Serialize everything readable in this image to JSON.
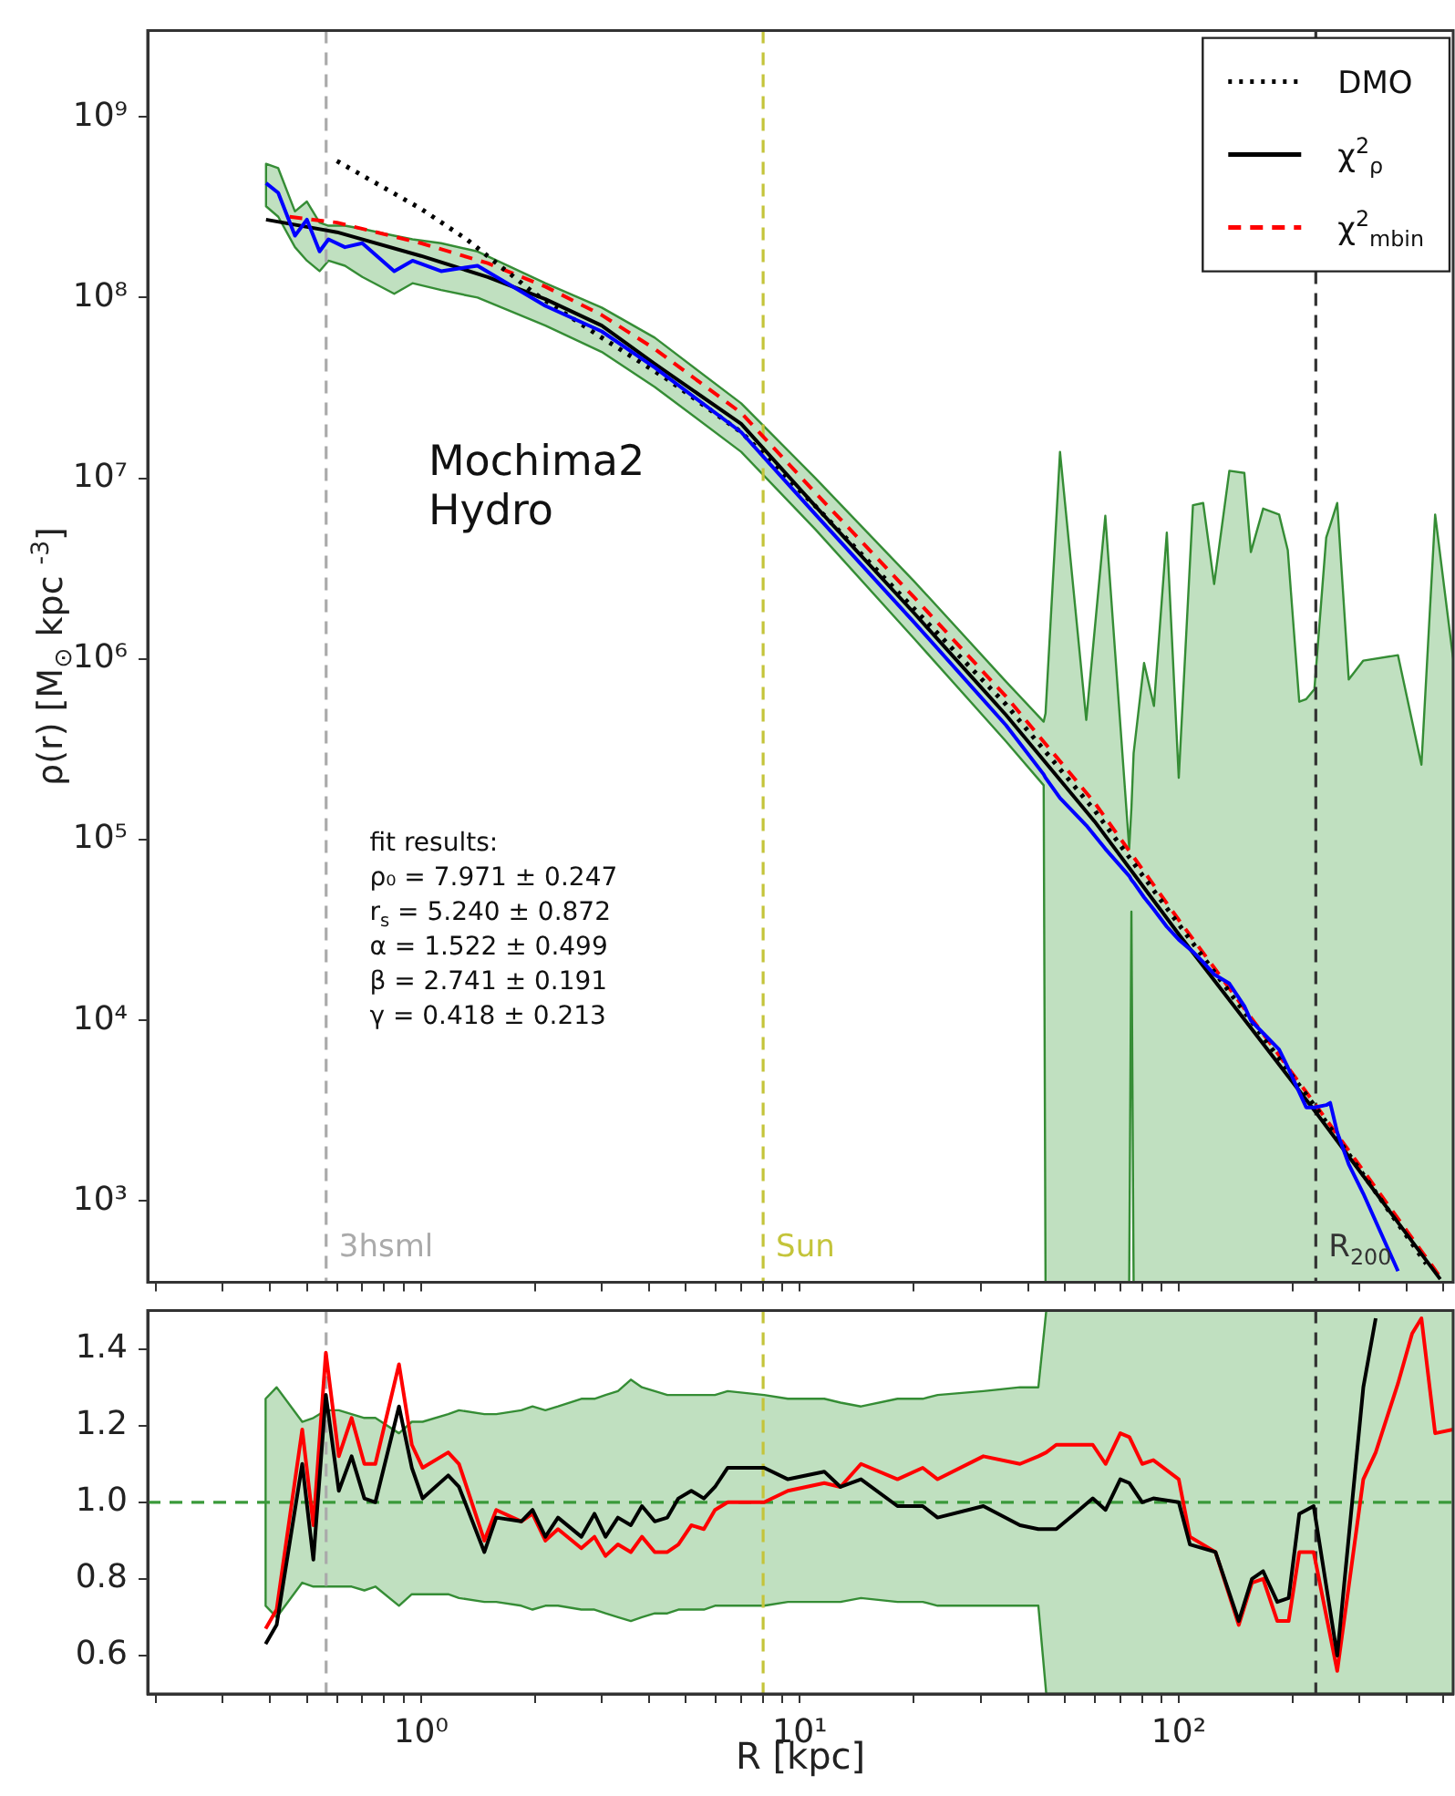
{
  "chart_data": [
    {
      "type": "line",
      "ylabel": "ρ(r) [M$_{⊙}$ kpc $^{-3}$]",
      "log": "xy",
      "xlim": [
        0.19,
        530
      ],
      "ylim": [
        356,
        3000000000
      ],
      "tick_labels": "y",
      "legend": "top right",
      "xticks": [
        {
          "value": 0.2,
          "label": null
        },
        {
          "value": 0.3,
          "label": null
        },
        {
          "value": 0.4,
          "label": null
        },
        {
          "value": 0.5,
          "label": null
        },
        {
          "value": 0.6,
          "label": null
        },
        {
          "value": 0.7,
          "label": null
        },
        {
          "value": 0.8,
          "label": null
        },
        {
          "value": 0.9,
          "label": null
        },
        {
          "value": 1,
          "label": null
        },
        {
          "value": 2,
          "label": null
        },
        {
          "value": 3,
          "label": null
        },
        {
          "value": 4,
          "label": null
        },
        {
          "value": 5,
          "label": null
        },
        {
          "value": 6,
          "label": null
        },
        {
          "value": 7,
          "label": null
        },
        {
          "value": 8,
          "label": null
        },
        {
          "value": 9,
          "label": null
        },
        {
          "value": 10,
          "label": null
        },
        {
          "value": 20,
          "label": null
        },
        {
          "value": 30,
          "label": null
        },
        {
          "value": 40,
          "label": null
        },
        {
          "value": 50,
          "label": null
        },
        {
          "value": 60,
          "label": null
        },
        {
          "value": 70,
          "label": null
        },
        {
          "value": 80,
          "label": null
        },
        {
          "value": 90,
          "label": null
        },
        {
          "value": 100,
          "label": null
        },
        {
          "value": 200,
          "label": null
        },
        {
          "value": 300,
          "label": null
        },
        {
          "value": 400,
          "label": null
        },
        {
          "value": 500,
          "label": null
        }
      ],
      "yticks": [
        {
          "value": 1000,
          "label": "10³"
        },
        {
          "value": 10000,
          "label": "10⁴"
        },
        {
          "value": 100000,
          "label": "10⁵"
        },
        {
          "value": 1000000,
          "label": "10⁶"
        },
        {
          "value": 10000000,
          "label": "10⁷"
        },
        {
          "value": 100000000,
          "label": "10⁸"
        },
        {
          "value": 1000000000,
          "label": "10⁹"
        }
      ],
      "ref_lines": [
        {
          "axis": "x",
          "value": 0.562,
          "label": "3hsml",
          "color": "#aaaaaa",
          "line_style": "dashed"
        },
        {
          "axis": "x",
          "value": 8,
          "label": "Sun",
          "color": "#c4c43a",
          "line_style": "dashed"
        },
        {
          "axis": "x",
          "value": 230,
          "label": "R$_{200}$",
          "color": "#333333",
          "line_style": "dashed"
        }
      ],
      "annotations": [
        "Mochima2\nHydro",
        "fit results:\nρ₀ = 7.971 ± 0.247\nr$_{s}$ = 5.240 ± 0.872\nα = 1.522 ± 0.499\nβ = 2.741 ± 0.191\nγ = 0.418 ± 0.213"
      ],
      "series": [
        {
          "color": "#0000ff",
          "line_style": "solid",
          "x": [
            0.39,
            0.42,
            0.465,
            0.5,
            0.54,
            0.57,
            0.63,
            0.7,
            0.85,
            0.95,
            1.13,
            1.41,
            2.13,
            3,
            4.14,
            7,
            11,
            20,
            35,
            44,
            44.5,
            48.6,
            57,
            64,
            74,
            75,
            76,
            81,
            86,
            93,
            100,
            109,
            116,
            124,
            136,
            149,
            155,
            167,
            184,
            194,
            208,
            217,
            228,
            245,
            251,
            262,
            281,
            307,
            379,
            437,
            475,
            530
          ],
          "values": [
            430000000,
            380000000,
            220000000,
            270000000,
            180000000,
            210000000,
            190000000,
            200000000,
            140000000,
            160000000,
            140000000,
            150000000,
            90000000,
            65000000,
            41000000,
            18000000,
            6300000,
            1600000,
            430000,
            230000,
            220000,
            170000,
            120000,
            89000,
            63000,
            60000,
            58000,
            48000,
            41000,
            33000,
            28000,
            24000,
            21000,
            18000,
            16000,
            12000,
            10000,
            8500,
            6900,
            5500,
            4000,
            3300,
            3300,
            3400,
            3500,
            2400,
            1600,
            1100,
            410,
            null,
            null,
            null
          ],
          "lower": [
            320000000,
            280000000,
            190000000,
            160000000,
            140000000,
            160000000,
            150000000,
            130000000,
            105000000,
            120000000,
            110000000,
            100000000,
            70000000,
            50000000,
            32000000,
            14000000,
            5200000,
            1300000,
            350000,
            200000,
            356,
            356,
            356,
            356,
            356,
            40000,
            356,
            356,
            356,
            356,
            356,
            356,
            356,
            356,
            356,
            356,
            356,
            356,
            356,
            356,
            356,
            356,
            356,
            356,
            356,
            356,
            356,
            356,
            356,
            356,
            356,
            356
          ],
          "upper": [
            550000000,
            520000000,
            300000000,
            340000000,
            260000000,
            250000000,
            250000000,
            240000000,
            220000000,
            210000000,
            200000000,
            180000000,
            120000000,
            88000000,
            60000000,
            26000000,
            10000000,
            2700000,
            750000,
            450000,
            500000,
            14000000,
            460000,
            6200000,
            90000,
            150000,
            300000,
            950000,
            550000,
            5000000,
            220000,
            7100000,
            7300000,
            2600000,
            11000000,
            10700000,
            3900000,
            6800000,
            6300000,
            4000000,
            580000,
            600000,
            680000,
            4700000,
            5500000,
            7300000,
            770000,
            980000,
            1050000,
            260000,
            6300000,
            1000000
          ]
        },
        {
          "name": "DMO",
          "color": "#000000",
          "line_style": "dotted",
          "x": [
            0.6,
            1,
            1.32,
            2,
            3,
            4.5,
            7,
            11,
            20,
            35,
            60,
            100,
            230,
            450
          ],
          "values": [
            570000000,
            310000000,
            210000000,
            105000000,
            60000000,
            35000000,
            18000000,
            7000000,
            1900000,
            560000,
            145000,
            34000,
            3300,
            450
          ]
        },
        {
          "name": "χ$^{2}$$_{ρ}$",
          "color": "#000000",
          "line_style": "solid",
          "x": [
            0.39,
            0.6,
            1,
            1.5,
            2.13,
            3,
            4.14,
            7,
            11,
            20,
            35,
            60,
            100,
            230,
            490
          ],
          "values": [
            270000000,
            230000000,
            170000000,
            130000000,
            98000000,
            70000000,
            43000000,
            20000000,
            7000000,
            1800000,
            490000,
            126000,
            30000,
            3100,
            370
          ]
        },
        {
          "name": "χ$^{2}$$_{mbin}$",
          "color": "#ff0000",
          "line_style": "dashed",
          "x": [
            0.45,
            0.6,
            1,
            1.5,
            2.13,
            3,
            4.14,
            7,
            11,
            20,
            35,
            60,
            100,
            230,
            490
          ],
          "values": [
            280000000,
            260000000,
            200000000,
            155000000,
            115000000,
            80000000,
            52000000,
            23000000,
            8300000,
            2200000,
            620000,
            160000,
            36000,
            3400,
            380
          ]
        }
      ]
    },
    {
      "type": "line",
      "xlabel": "R [kpc]",
      "log": "x",
      "xlim": [
        0.19,
        530
      ],
      "ylim": [
        0.5,
        1.5
      ],
      "xticks": [
        {
          "value": 0.2,
          "label": null
        },
        {
          "value": 0.3,
          "label": null
        },
        {
          "value": 0.4,
          "label": null
        },
        {
          "value": 0.5,
          "label": null
        },
        {
          "value": 0.6,
          "label": null
        },
        {
          "value": 0.7,
          "label": null
        },
        {
          "value": 0.8,
          "label": null
        },
        {
          "value": 0.9,
          "label": null
        },
        {
          "value": 1,
          "label": "10⁰"
        },
        {
          "value": 2,
          "label": null
        },
        {
          "value": 3,
          "label": null
        },
        {
          "value": 4,
          "label": null
        },
        {
          "value": 5,
          "label": null
        },
        {
          "value": 6,
          "label": null
        },
        {
          "value": 7,
          "label": null
        },
        {
          "value": 8,
          "label": null
        },
        {
          "value": 9,
          "label": null
        },
        {
          "value": 10,
          "label": "10¹"
        },
        {
          "value": 20,
          "label": null
        },
        {
          "value": 30,
          "label": null
        },
        {
          "value": 40,
          "label": null
        },
        {
          "value": 50,
          "label": null
        },
        {
          "value": 60,
          "label": null
        },
        {
          "value": 70,
          "label": null
        },
        {
          "value": 80,
          "label": null
        },
        {
          "value": 90,
          "label": null
        },
        {
          "value": 100,
          "label": "10²"
        },
        {
          "value": 200,
          "label": null
        },
        {
          "value": 300,
          "label": null
        },
        {
          "value": 400,
          "label": null
        },
        {
          "value": 500,
          "label": null
        }
      ],
      "yticks": [
        0.6,
        0.8,
        {
          "value": 1,
          "label": "1.0"
        },
        1.2,
        1.4
      ],
      "ref_lines": [
        {
          "axis": "x",
          "value": 0.562,
          "color": "#aaaaaa",
          "line_style": "dashed"
        },
        {
          "axis": "x",
          "value": 8,
          "color": "#c4c43a",
          "line_style": "dashed"
        },
        {
          "axis": "x",
          "value": 230,
          "color": "#333333",
          "line_style": "dashed"
        },
        {
          "axis": "y",
          "value": 1,
          "color": "#3a9a3a",
          "line_style": "dashed"
        }
      ],
      "x": [
        0.389,
        0.416,
        0.486,
        0.52,
        0.561,
        0.607,
        0.656,
        0.709,
        0.758,
        0.875,
        0.946,
        1.01,
        1.18,
        1.26,
        1.47,
        1.58,
        1.84,
        1.97,
        2.13,
        2.3,
        2.65,
        2.87,
        3.07,
        3.31,
        3.58,
        3.83,
        4.14,
        4.47,
        4.78,
        5.17,
        5.58,
        5.97,
        6.45,
        8.05,
        9.3,
        11.6,
        12.8,
        14.5,
        18.1,
        21.1,
        23.1,
        30.5,
        38.1,
        42.6,
        44.7,
        47.5,
        53.1,
        59.3,
        64.1,
        70.1,
        74.1,
        80.1,
        85.7,
        100,
        107,
        125,
        144,
        156,
        167,
        182,
        195,
        208,
        227,
        262,
        307,
        331,
        379,
        413,
        437,
        475,
        530
      ],
      "series": [
        {
          "color": "#000000",
          "line_style": "solid",
          "values": [
            0.63,
            0.68,
            1.1,
            0.85,
            1.28,
            1.03,
            1.12,
            1.01,
            1.0,
            1.25,
            1.09,
            1.01,
            1.07,
            1.04,
            0.87,
            0.96,
            0.95,
            0.98,
            0.91,
            0.96,
            0.91,
            0.97,
            0.91,
            0.96,
            0.94,
            0.99,
            0.95,
            0.96,
            1.01,
            1.03,
            1.01,
            1.04,
            1.09,
            1.09,
            1.06,
            1.08,
            1.04,
            1.06,
            0.99,
            0.99,
            0.96,
            0.99,
            0.94,
            0.93,
            0.93,
            0.93,
            0.97,
            1.01,
            0.98,
            1.06,
            1.05,
            1.0,
            1.01,
            1.0,
            0.89,
            0.87,
            0.69,
            0.8,
            0.82,
            0.74,
            0.75,
            0.97,
            0.99,
            0.6,
            1.3,
            1.48,
            null,
            null,
            null,
            null,
            null
          ],
          "lower": [
            0.73,
            0.7,
            0.79,
            0.78,
            0.78,
            0.78,
            0.78,
            0.77,
            0.78,
            0.73,
            0.76,
            0.76,
            0.76,
            0.75,
            0.74,
            0.74,
            0.73,
            0.72,
            0.73,
            0.73,
            0.72,
            0.72,
            0.71,
            0.7,
            0.69,
            0.7,
            0.71,
            0.71,
            0.72,
            0.72,
            0.72,
            0.73,
            0.73,
            0.73,
            0.74,
            0.74,
            0.74,
            0.75,
            0.74,
            0.74,
            0.73,
            0.73,
            0.73,
            0.73,
            0.5,
            0.5,
            0.5,
            0.5,
            0.5,
            0.5,
            0.5,
            0.5,
            0.5,
            0.5,
            0.5,
            0.5,
            0.5,
            0.5,
            0.5,
            0.5,
            0.5,
            0.5,
            0.5,
            0.5,
            0.5,
            0.5,
            0.5,
            0.5,
            0.5,
            0.5,
            0.5
          ],
          "upper": [
            1.27,
            1.3,
            1.21,
            1.22,
            1.24,
            1.24,
            1.23,
            1.22,
            1.22,
            1.18,
            1.21,
            1.21,
            1.23,
            1.24,
            1.23,
            1.23,
            1.24,
            1.25,
            1.24,
            1.25,
            1.27,
            1.27,
            1.28,
            1.29,
            1.32,
            1.3,
            1.29,
            1.28,
            1.28,
            1.28,
            1.28,
            1.28,
            1.29,
            1.28,
            1.27,
            1.27,
            1.26,
            1.25,
            1.27,
            1.27,
            1.28,
            1.29,
            1.3,
            1.3,
            1.5,
            1.5,
            1.5,
            1.5,
            1.5,
            1.5,
            1.5,
            1.5,
            1.5,
            1.5,
            1.5,
            1.5,
            1.5,
            1.5,
            1.5,
            1.5,
            1.5,
            1.5,
            1.5,
            1.5,
            1.5,
            1.5,
            1.5,
            1.5,
            1.5,
            1.5,
            1.5
          ]
        },
        {
          "color": "#ff0000",
          "line_style": "solid",
          "values": [
            0.67,
            0.72,
            1.19,
            0.94,
            1.39,
            1.12,
            1.22,
            1.1,
            1.1,
            1.36,
            1.15,
            1.09,
            1.13,
            1.1,
            0.9,
            0.98,
            0.95,
            0.97,
            0.9,
            0.93,
            0.88,
            0.91,
            0.86,
            0.89,
            0.87,
            0.91,
            0.87,
            0.87,
            0.89,
            0.94,
            0.93,
            0.98,
            1.0,
            1.0,
            1.03,
            1.05,
            1.04,
            1.1,
            1.06,
            1.09,
            1.06,
            1.12,
            1.1,
            1.12,
            1.13,
            1.15,
            1.15,
            1.15,
            1.1,
            1.18,
            1.17,
            1.1,
            1.11,
            1.06,
            0.91,
            0.87,
            0.68,
            0.79,
            0.8,
            0.69,
            0.69,
            0.87,
            0.87,
            0.56,
            1.06,
            1.13,
            1.31,
            1.44,
            1.48,
            1.18,
            1.19
          ]
        }
      ]
    }
  ]
}
